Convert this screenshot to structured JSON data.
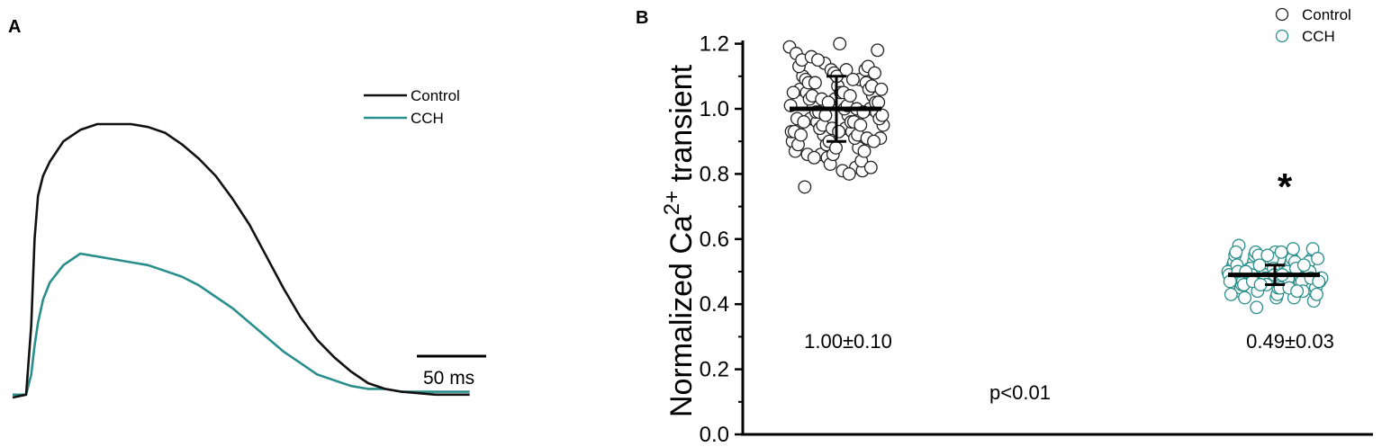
{
  "panel_a": {
    "label": "A",
    "scale_bar_label": "50 ms",
    "legend": [
      {
        "name": "Control",
        "color": "#111111"
      },
      {
        "name": "CCH",
        "color": "#2a8f8c"
      }
    ]
  },
  "panel_b": {
    "label": "B",
    "ylabel_main": "Normalized Ca",
    "ylabel_sup": "2+",
    "ylabel_tail": " transient",
    "yticks": [
      "0.0",
      "0.2",
      "0.4",
      "0.6",
      "0.8",
      "1.0",
      "1.2"
    ],
    "legend": [
      {
        "name": "Control",
        "color": "#222222"
      },
      {
        "name": "CCH",
        "color": "#2a8f8c"
      }
    ],
    "annotations": {
      "control_stat": "1.00±0.10",
      "cch_stat": "0.49±0.03",
      "p_value": "p<0.01",
      "significance": "*"
    }
  },
  "chart_data": [
    {
      "type": "line",
      "title": "",
      "xlabel": "",
      "ylabel": "",
      "x_unit": "ms",
      "x": [
        0,
        8,
        11,
        13,
        15,
        18,
        22,
        30,
        40,
        50,
        60,
        70,
        80,
        90,
        100,
        110,
        120,
        130,
        140,
        150,
        160,
        170,
        180,
        190,
        200,
        210,
        220,
        230,
        250,
        270
      ],
      "series": [
        {
          "name": "Control",
          "values": [
            0.0,
            0.01,
            0.25,
            0.55,
            0.7,
            0.77,
            0.82,
            0.89,
            0.93,
            0.95,
            0.95,
            0.95,
            0.94,
            0.92,
            0.88,
            0.83,
            0.77,
            0.69,
            0.6,
            0.49,
            0.38,
            0.28,
            0.2,
            0.14,
            0.09,
            0.05,
            0.03,
            0.02,
            0.01,
            0.01
          ]
        },
        {
          "name": "CCH",
          "values": [
            0.01,
            0.01,
            0.08,
            0.18,
            0.26,
            0.34,
            0.4,
            0.46,
            0.5,
            0.49,
            0.48,
            0.47,
            0.46,
            0.44,
            0.42,
            0.39,
            0.35,
            0.31,
            0.26,
            0.21,
            0.16,
            0.12,
            0.08,
            0.06,
            0.04,
            0.03,
            0.03,
            0.02,
            0.02,
            0.02
          ]
        }
      ]
    },
    {
      "type": "scatter",
      "title": "",
      "categories": [
        "Control",
        "CCH"
      ],
      "ylabel": "Normalized Ca2+ transient",
      "ylim": [
        0,
        1.2
      ],
      "series": [
        {
          "name": "Control",
          "mean": 1.0,
          "sd": 0.1,
          "color": "#222222",
          "values": [
            1.19,
            1.14,
            1.09,
            1.06,
            1.03,
            1.0,
            0.97,
            0.94,
            0.91,
            0.86,
            0.82,
            1.17,
            1.12,
            1.08,
            1.05,
            1.02,
            0.99,
            0.96,
            0.93,
            0.9,
            0.85,
            0.81,
            1.1,
            1.07,
            1.04,
            1.01,
            0.98,
            0.95,
            0.92,
            0.88,
            1.13,
            1.11,
            1.06,
            1.03,
            1.0,
            0.97,
            0.94,
            0.91,
            0.87,
            0.83,
            1.12,
            1.09,
            1.05,
            1.02,
            0.99,
            0.96,
            0.93,
            0.89,
            0.84,
            1.15,
            1.1,
            1.07,
            1.04,
            1.01,
            0.98,
            0.95,
            0.92,
            0.89,
            0.86,
            1.13,
            1.08,
            1.05,
            1.02,
            0.99,
            0.96,
            0.93,
            0.9,
            0.87,
            0.76,
            1.2,
            1.11,
            1.08,
            1.04,
            1.01,
            0.98,
            0.95,
            0.92,
            0.88,
            0.82,
            1.16,
            1.12,
            1.06,
            1.03,
            1.0,
            0.97,
            0.94,
            0.91,
            0.86,
            0.81,
            1.18,
            1.15,
            1.09,
            1.05,
            1.02,
            0.99,
            0.96,
            0.93,
            0.9,
            0.85,
            0.8
          ]
        },
        {
          "name": "CCH",
          "mean": 0.49,
          "sd": 0.03,
          "color": "#2a8f8c",
          "values": [
            0.58,
            0.56,
            0.54,
            0.53,
            0.52,
            0.51,
            0.5,
            0.5,
            0.49,
            0.48,
            0.47,
            0.46,
            0.45,
            0.44,
            0.42,
            0.57,
            0.55,
            0.53,
            0.52,
            0.51,
            0.5,
            0.49,
            0.49,
            0.48,
            0.47,
            0.46,
            0.45,
            0.43,
            0.41,
            0.56,
            0.54,
            0.53,
            0.52,
            0.51,
            0.5,
            0.49,
            0.48,
            0.48,
            0.47,
            0.46,
            0.45,
            0.44,
            0.39,
            0.57,
            0.55,
            0.53,
            0.52,
            0.51,
            0.5,
            0.5,
            0.49,
            0.48,
            0.47,
            0.46,
            0.45,
            0.44,
            0.42,
            0.56,
            0.54,
            0.53,
            0.51,
            0.5,
            0.49,
            0.48,
            0.47,
            0.46,
            0.45,
            0.43,
            0.55,
            0.53,
            0.52,
            0.51,
            0.5,
            0.49,
            0.48,
            0.47,
            0.46,
            0.44,
            0.42,
            0.56,
            0.54,
            0.52,
            0.51,
            0.5,
            0.49,
            0.48,
            0.47,
            0.45,
            0.43,
            0.55,
            0.52,
            0.5,
            0.49,
            0.47,
            0.46,
            0.44
          ]
        }
      ]
    }
  ]
}
